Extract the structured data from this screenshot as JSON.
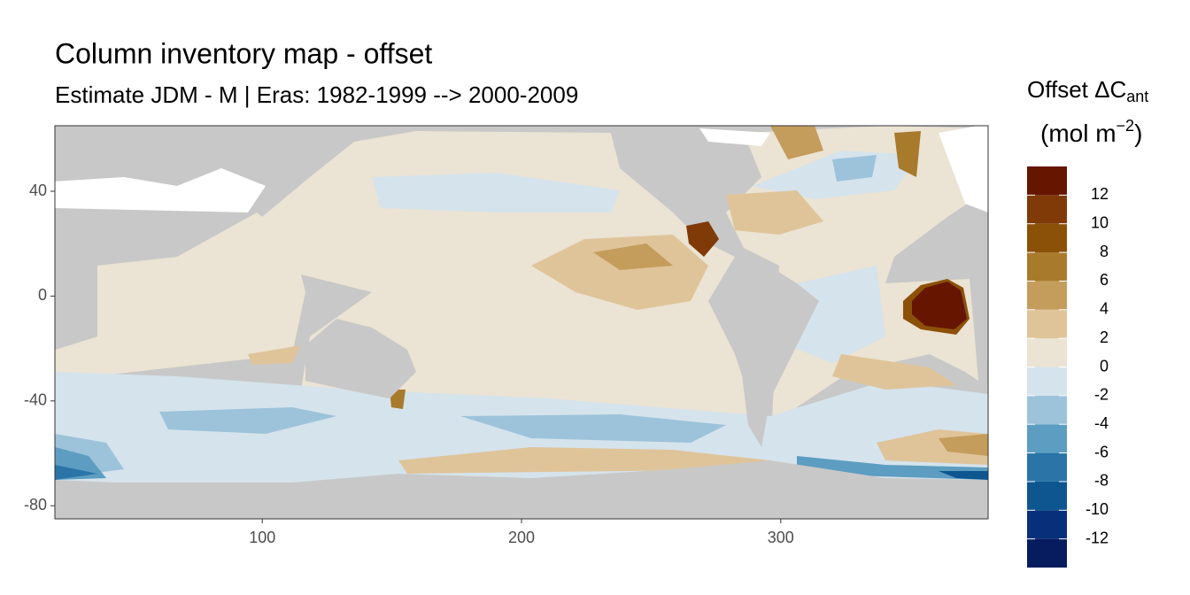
{
  "chart_data": {
    "type": "raster_map",
    "title": "Column inventory map - offset",
    "subtitle": "Estimate JDM - M | Eras: 1982-1999 --> 2000-2009",
    "xlim": [
      20,
      380
    ],
    "ylim": [
      -85,
      65
    ],
    "xticks": [
      100,
      200,
      300
    ],
    "yticks": [
      40,
      0,
      -40,
      -80
    ],
    "land_color": "#c8c8c8",
    "legend": {
      "title": "Offset ΔC",
      "title_subscript": "ant",
      "unit": "(mol m",
      "unit_superscript": "−2",
      "unit_end": ")",
      "breaks": [
        -14,
        -12,
        -10,
        -8,
        -6,
        -4,
        -2,
        0,
        2,
        4,
        6,
        8,
        10,
        12,
        14
      ],
      "colors": [
        "#061c5e",
        "#08307a",
        "#0e5690",
        "#2a74a7",
        "#5c9dc1",
        "#9cc3da",
        "#d5e3ec",
        "#ebe3d3",
        "#dfc49a",
        "#c49c5c",
        "#a87a2c",
        "#8c5109",
        "#7f3a08",
        "#661500"
      ],
      "ticks": [
        -12,
        -10,
        -8,
        -6,
        -4,
        -2,
        0,
        2,
        4,
        6,
        8,
        10,
        12
      ]
    }
  }
}
